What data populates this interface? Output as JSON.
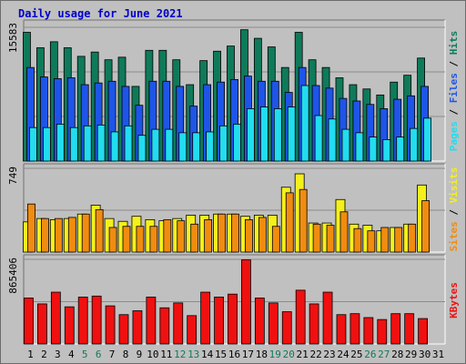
{
  "title": "Daily usage for June 2021",
  "colors": {
    "hits": "#0f7a5a",
    "files": "#1e55e8",
    "pages": "#22dcf0",
    "visits": "#f4f01c",
    "sites": "#f08c10",
    "kbytes": "#f01010",
    "weekend_day": "#0f7a5a",
    "weekday": "#000000"
  },
  "chart_data": [
    {
      "type": "bar",
      "panel": "hits-files-pages",
      "categories": [
        "1",
        "2",
        "3",
        "4",
        "5",
        "6",
        "7",
        "8",
        "9",
        "10",
        "11",
        "12",
        "13",
        "14",
        "15",
        "16",
        "17",
        "18",
        "19",
        "20",
        "21",
        "22",
        "23",
        "24",
        "25",
        "26",
        "27",
        "28",
        "29",
        "30",
        "31"
      ],
      "ymax_label": "15583",
      "ymax": 15583,
      "series": [
        {
          "name": "Hits",
          "values": [
            15000,
            13200,
            13900,
            13200,
            12200,
            12700,
            11800,
            12100,
            8700,
            12900,
            12900,
            11800,
            8900,
            11700,
            12800,
            13400,
            15300,
            14300,
            13300,
            10900,
            15000,
            11800,
            10900,
            9700,
            8900,
            8400,
            7700,
            9200,
            10000,
            12000,
            0
          ]
        },
        {
          "name": "Files",
          "values": [
            10900,
            9800,
            9600,
            9700,
            8900,
            9100,
            9300,
            8700,
            6500,
            9300,
            9300,
            8700,
            6400,
            8900,
            9200,
            9500,
            9900,
            9300,
            9300,
            8000,
            10900,
            8800,
            8500,
            7300,
            7000,
            6600,
            6100,
            7200,
            7600,
            8700,
            0
          ]
        },
        {
          "name": "Pages",
          "values": [
            3900,
            3900,
            4300,
            3900,
            4100,
            4200,
            3400,
            4100,
            3000,
            3700,
            3700,
            3300,
            3300,
            3400,
            4100,
            4300,
            6100,
            6300,
            6100,
            6300,
            8800,
            5300,
            4900,
            3700,
            3300,
            2800,
            2500,
            2800,
            3800,
            5000,
            0
          ]
        }
      ],
      "series_label_order": [
        "Pages",
        "Files",
        "Hits"
      ]
    },
    {
      "type": "bar",
      "panel": "visits-sites",
      "categories": [
        "1",
        "2",
        "3",
        "4",
        "5",
        "6",
        "7",
        "8",
        "9",
        "10",
        "11",
        "12",
        "13",
        "14",
        "15",
        "16",
        "17",
        "18",
        "19",
        "20",
        "21",
        "22",
        "23",
        "24",
        "25",
        "26",
        "27",
        "28",
        "29",
        "30",
        "31"
      ],
      "ymax_label": "749",
      "ymax": 749,
      "series": [
        {
          "name": "Visits",
          "values": [
            270,
            300,
            290,
            300,
            340,
            420,
            300,
            275,
            320,
            290,
            280,
            300,
            330,
            330,
            340,
            340,
            320,
            330,
            330,
            580,
            700,
            260,
            260,
            470,
            250,
            240,
            190,
            220,
            250,
            600,
            0
          ]
        },
        {
          "name": "Sites",
          "values": [
            430,
            300,
            300,
            310,
            340,
            380,
            220,
            230,
            230,
            230,
            290,
            280,
            250,
            290,
            340,
            340,
            290,
            310,
            230,
            530,
            560,
            250,
            240,
            360,
            210,
            190,
            220,
            220,
            250,
            460,
            0
          ]
        }
      ],
      "series_label_order": [
        "Sites",
        "Visits"
      ]
    },
    {
      "type": "bar",
      "panel": "kbytes",
      "categories": [
        "1",
        "2",
        "3",
        "4",
        "5",
        "6",
        "7",
        "8",
        "9",
        "10",
        "11",
        "12",
        "13",
        "14",
        "15",
        "16",
        "17",
        "18",
        "19",
        "20",
        "21",
        "22",
        "23",
        "24",
        "25",
        "26",
        "27",
        "28",
        "29",
        "30",
        "31"
      ],
      "ymax_label": "865406",
      "ymax": 865406,
      "series": [
        {
          "name": "KBytes",
          "values": [
            470000,
            410000,
            530000,
            380000,
            480000,
            490000,
            390000,
            300000,
            340000,
            480000,
            370000,
            420000,
            290000,
            530000,
            480000,
            510000,
            860000,
            470000,
            420000,
            330000,
            550000,
            410000,
            530000,
            300000,
            310000,
            270000,
            250000,
            310000,
            310000,
            260000,
            0
          ]
        }
      ],
      "series_label_order": [
        "KBytes"
      ]
    }
  ],
  "x_labels": [
    "1",
    "2",
    "3",
    "4",
    "5",
    "6",
    "7",
    "8",
    "9",
    "10",
    "11",
    "12",
    "13",
    "14",
    "15",
    "16",
    "17",
    "18",
    "19",
    "20",
    "21",
    "22",
    "23",
    "24",
    "25",
    "26",
    "27",
    "28",
    "29",
    "30",
    "31"
  ],
  "weekend_days": [
    5,
    6,
    12,
    13,
    19,
    20,
    26,
    27
  ],
  "separator": " / "
}
